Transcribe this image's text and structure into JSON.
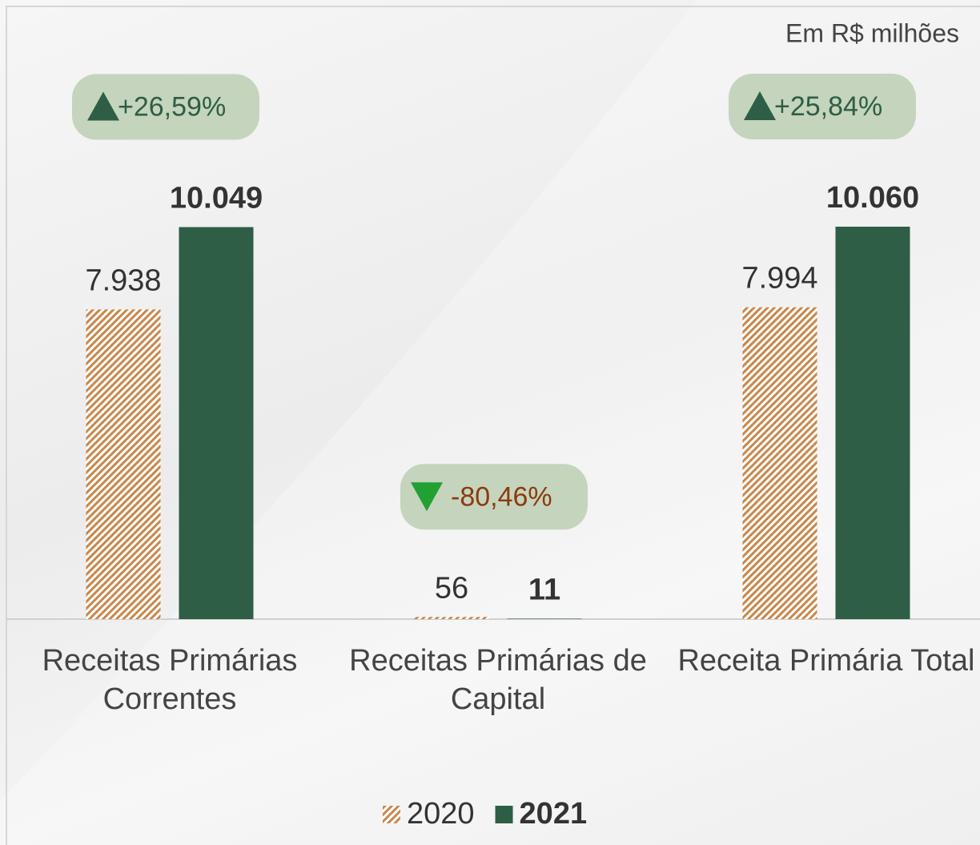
{
  "chart_data": {
    "type": "bar",
    "subtitle": "Em R$ milhões",
    "categories": [
      "Receitas Primárias Correntes",
      "Receitas Primárias de Capital",
      "Receita Primária Total"
    ],
    "series": [
      {
        "name": "2020",
        "color": "#c8874a",
        "hatch": true,
        "values": [
          7938,
          56,
          7994
        ],
        "value_labels": [
          "7.938",
          "56",
          "7.994"
        ]
      },
      {
        "name": "2021",
        "color": "#2e5e45",
        "bold": true,
        "values": [
          10049,
          11,
          10060
        ],
        "value_labels": [
          "10.049",
          "11",
          "10.060"
        ]
      }
    ],
    "annotations": [
      "+26,59%",
      "-80,46%",
      "+25,84%"
    ],
    "legend": "bottom"
  }
}
